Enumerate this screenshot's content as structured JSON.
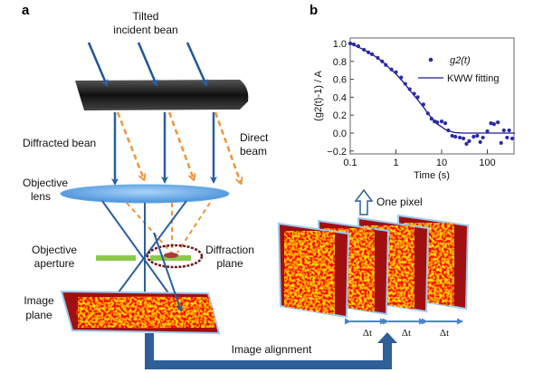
{
  "panel_a": {
    "label": "a",
    "incident_beam": [
      "Tilted",
      "incident bean"
    ],
    "diffracted_beam": "Diffracted bean",
    "direct_beam": [
      "Direct",
      "beam"
    ],
    "objective_lens": [
      "Objective",
      "lens"
    ],
    "objective_aperture": [
      "Objective",
      "aperture"
    ],
    "diffraction_plane": [
      "Diffraction",
      "plane"
    ],
    "image_plane": [
      "Image",
      "plane"
    ],
    "image_alignment": "Image alignment"
  },
  "panel_b": {
    "label": "b",
    "one_pixel": "One pixel",
    "delta_t": [
      "Δt",
      "Δt",
      "Δt"
    ]
  },
  "colors": {
    "beam": "#2c5f9e",
    "direct": "#f0943a",
    "aperture": "#8cc84b",
    "ring": "#6b1c1c",
    "lens": "#6aaee8"
  },
  "chart_data": {
    "type": "scatter",
    "xscale": "log",
    "xlabel": "Time (s)",
    "ylabel": "(g2(t)-1) / A",
    "xlim": [
      0.1,
      400
    ],
    "ylim": [
      -0.2,
      1.05
    ],
    "xticks": [
      "0.1",
      "1",
      "10",
      "100"
    ],
    "yticks": [
      "1.0",
      "0.8",
      "0.6",
      "0.4",
      "0.2",
      "0.0",
      "−0.2"
    ],
    "legend": {
      "placement": "top-right",
      "points": "g2(t)",
      "line": "KWW fitting"
    },
    "series": [
      {
        "name": "g2(t)",
        "kind": "points",
        "x": [
          0.1,
          0.12,
          0.15,
          0.2,
          0.25,
          0.3,
          0.4,
          0.5,
          0.6,
          0.8,
          1,
          1.3,
          1.6,
          2,
          2.5,
          3,
          4,
          5,
          6,
          7,
          8,
          10,
          12,
          14,
          17,
          20,
          25,
          30,
          35,
          40,
          50,
          60,
          70,
          80,
          100,
          120,
          140,
          170,
          200,
          230,
          270,
          300,
          350
        ],
        "y": [
          1.0,
          0.99,
          0.97,
          0.93,
          0.9,
          0.88,
          0.84,
          0.8,
          0.76,
          0.71,
          0.68,
          0.62,
          0.55,
          0.49,
          0.44,
          0.4,
          0.32,
          0.22,
          0.16,
          0.13,
          0.12,
          0.13,
          0.11,
          0.03,
          -0.03,
          -0.04,
          -0.05,
          -0.06,
          -0.12,
          -0.09,
          -0.04,
          -0.03,
          -0.1,
          -0.05,
          0.02,
          0.11,
          0.1,
          0.12,
          -0.11,
          0.03,
          -0.05,
          0.03,
          -0.06
        ]
      },
      {
        "name": "KWW fitting",
        "kind": "line",
        "x": [
          0.1,
          0.2,
          0.3,
          0.5,
          0.7,
          1,
          1.5,
          2,
          3,
          4,
          5,
          6,
          8,
          10,
          12,
          15,
          20,
          30,
          40,
          100,
          400
        ],
        "y": [
          1.0,
          0.93,
          0.88,
          0.8,
          0.73,
          0.66,
          0.56,
          0.48,
          0.37,
          0.29,
          0.22,
          0.17,
          0.1,
          0.07,
          0.04,
          0.02,
          0.005,
          0.0,
          0.0,
          0.0,
          0.0
        ]
      }
    ]
  }
}
